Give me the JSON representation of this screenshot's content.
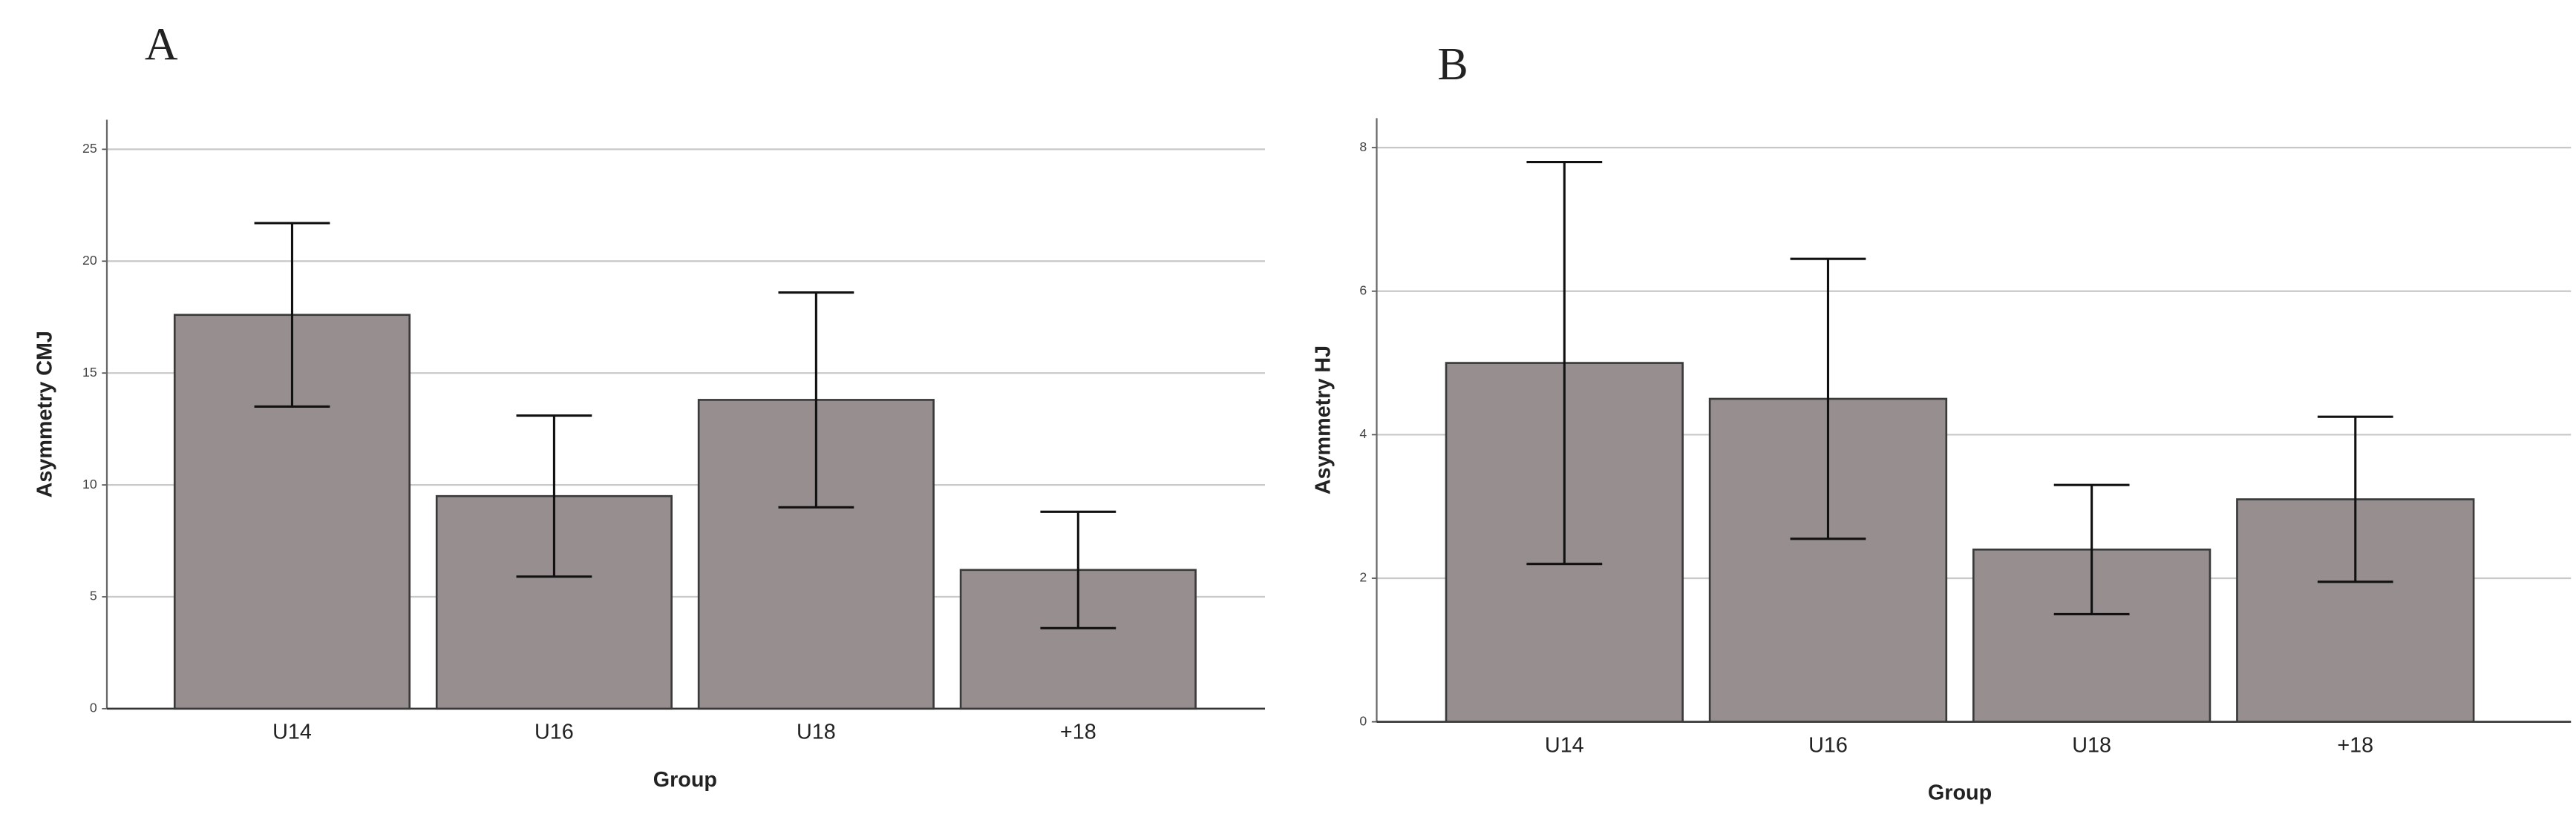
{
  "chart_data": [
    {
      "type": "bar",
      "panel_label": "A",
      "y_label": "Asymmetry CMJ",
      "x_label": "Group",
      "categories": [
        "U14",
        "U16",
        "U18",
        "+18"
      ],
      "values": [
        17.6,
        9.5,
        13.8,
        6.2
      ],
      "error": [
        4.1,
        3.6,
        4.8,
        2.6
      ],
      "color": "#978f8f",
      "ylim": [
        0,
        25
      ],
      "yticks": [
        0,
        5,
        10,
        15,
        20,
        25
      ],
      "grid": true
    },
    {
      "type": "bar",
      "panel_label": "B",
      "y_label": "Asymmetry HJ",
      "x_label": "Group",
      "categories": [
        "U14",
        "U16",
        "U18",
        "+18"
      ],
      "values": [
        5.0,
        4.5,
        2.4,
        3.1
      ],
      "error": [
        2.8,
        1.95,
        0.9,
        1.15
      ],
      "color": "#978f8f",
      "ylim": [
        0,
        8
      ],
      "yticks": [
        0,
        2,
        4,
        6,
        8
      ],
      "grid": true
    }
  ]
}
